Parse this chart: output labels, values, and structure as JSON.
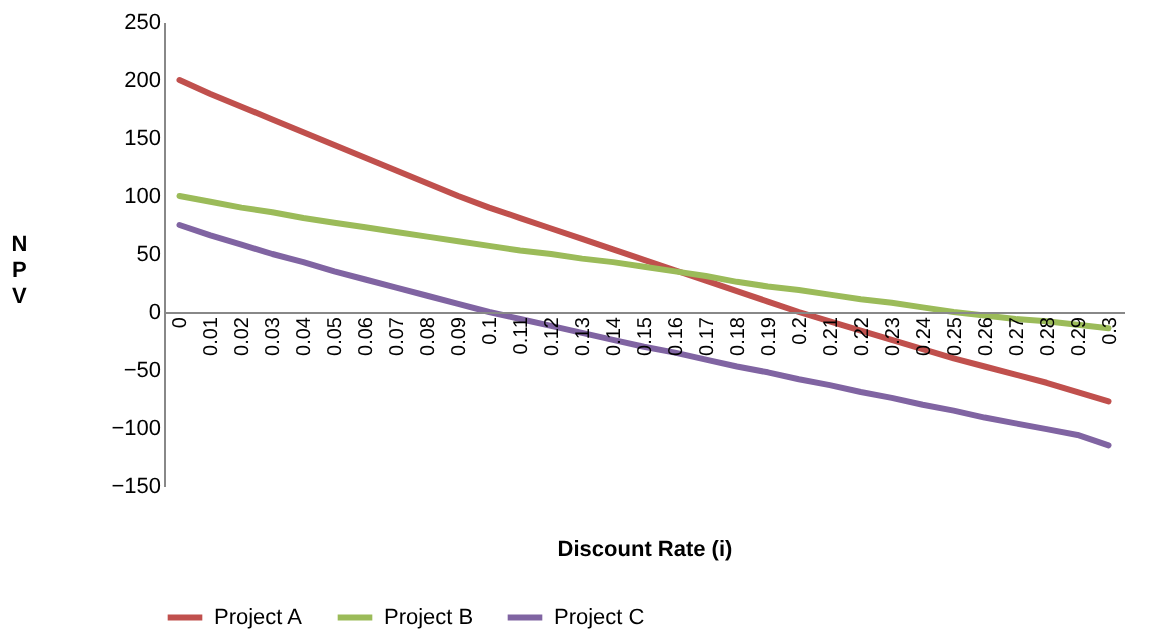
{
  "chart_data": {
    "type": "line",
    "xlabel": "Discount Rate (i)",
    "ylabel": "NPV",
    "categories": [
      "0",
      "0.01",
      "0.02",
      "0.03",
      "0.04",
      "0.05",
      "0.06",
      "0.07",
      "0.08",
      "0.09",
      "0.1",
      "0.11",
      "0.12",
      "0.13",
      "0.14",
      "0.15",
      "0.16",
      "0.17",
      "0.18",
      "0.19",
      "0.2",
      "0.21",
      "0.22",
      "0.23",
      "0.24",
      "0.25",
      "0.26",
      "0.27",
      "0.28",
      "0.29",
      "0.3"
    ],
    "series": [
      {
        "name": "Project A",
        "color": "#c0504d",
        "values": [
          200,
          188,
          177,
          166,
          155,
          144,
          133,
          122,
          111,
          100,
          90,
          81,
          72,
          63,
          54,
          45,
          36,
          27,
          18,
          9,
          0,
          -8,
          -16,
          -24,
          -32,
          -40,
          -47,
          -54,
          -61,
          -69,
          -77
        ]
      },
      {
        "name": "Project B",
        "color": "#9bbb59",
        "values": [
          100,
          95,
          90,
          86,
          81,
          77,
          73,
          69,
          65,
          61,
          57,
          53,
          50,
          46,
          43,
          39,
          35,
          31,
          26,
          22,
          19,
          15,
          11,
          8,
          4,
          0,
          -3,
          -6,
          -8,
          -11,
          -14
        ]
      },
      {
        "name": "Project C",
        "color": "#8064a2",
        "values": [
          75,
          66,
          58,
          50,
          43,
          35,
          28,
          21,
          14,
          7,
          0,
          -6,
          -12,
          -18,
          -24,
          -30,
          -35,
          -41,
          -47,
          -52,
          -58,
          -63,
          -69,
          -74,
          -80,
          -85,
          -91,
          -96,
          -101,
          -106,
          -115
        ]
      }
    ],
    "ylim": [
      -150,
      250
    ],
    "yticks": [
      -150,
      -100,
      -50,
      0,
      50,
      100,
      150,
      200,
      250
    ],
    "grid": false,
    "legend": "bottom",
    "marker": "none",
    "line_style": "solid"
  }
}
